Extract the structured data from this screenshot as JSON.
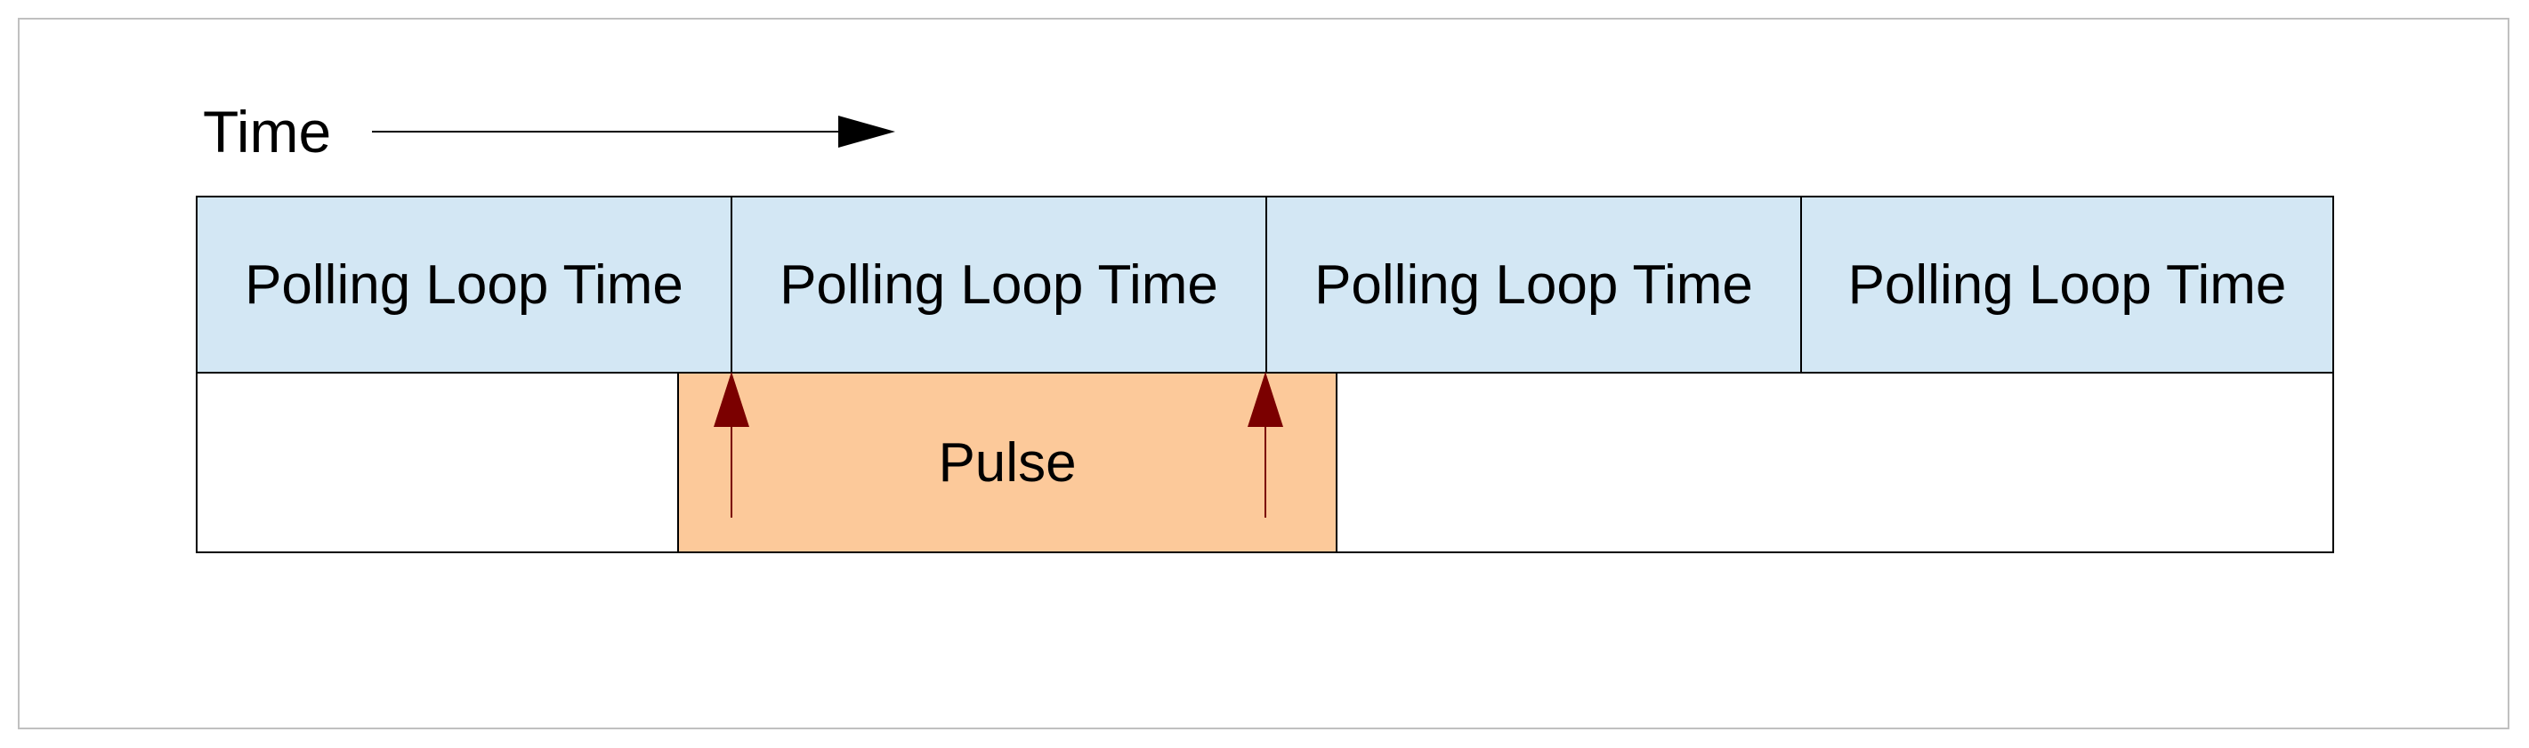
{
  "diagram": {
    "time_label": "Time",
    "polling_cells": [
      {
        "label": "Polling Loop Time"
      },
      {
        "label": "Polling Loop Time"
      },
      {
        "label": "Polling Loop Time"
      },
      {
        "label": "Polling Loop Time"
      }
    ],
    "pulse_label": "Pulse",
    "colors": {
      "polling_fill": "#d3e7f4",
      "pulse_fill": "#fcc99a",
      "sample_arrow": "#7b0000",
      "outline": "#000000",
      "frame": "#c0c0c0"
    },
    "icons": {
      "time_arrow": "arrow-right-icon",
      "sample_arrow": "arrow-up-icon"
    }
  }
}
